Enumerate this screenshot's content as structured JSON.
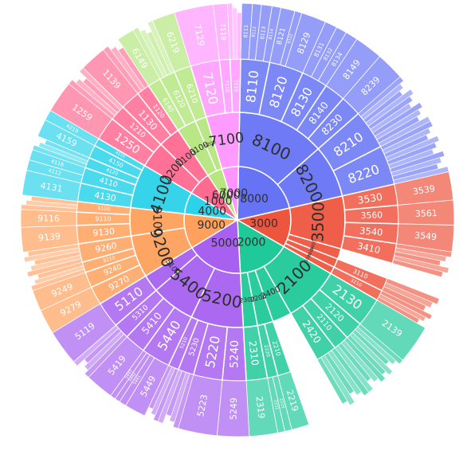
{
  "chart_data": {
    "type": "sunburst",
    "title": "",
    "ring_labels": "hierarchical category codes",
    "colors": {
      "8000": "#6673f5",
      "3000": "#ee553f",
      "2000": "#1fc999",
      "5000": "#a760f0",
      "9000": "#ffa05c",
      "4000": "#2ad2ea",
      "1000": "#ff6a91",
      "6000": "#b5e680",
      "7000": "#ff96ff"
    },
    "root": [
      {
        "code": "8000",
        "value": 160,
        "children": [
          {
            "code": "8100",
            "value": 100,
            "children": [
              {
                "code": "8110",
                "value": 22,
                "children": [
                  {
                    "code": "8111",
                    "value": 6
                  },
                  {
                    "code": "8112",
                    "value": 5
                  },
                  {
                    "code": "8113",
                    "value": 6
                  },
                  {
                    "code": "8114",
                    "value": 5
                  }
                ]
              },
              {
                "code": "8120",
                "value": 26,
                "children": [
                  {
                    "code": "8121",
                    "value": 8
                  },
                  {
                    "code": "8122",
                    "value": 4
                  },
                  {
                    "code": "8129",
                    "value": 14
                  }
                ]
              },
              {
                "code": "8130",
                "value": 20,
                "children": [
                  {
                    "code": "8131",
                    "value": 7
                  },
                  {
                    "code": "8132",
                    "value": 6
                  },
                  {
                    "code": "8134",
                    "value": 7
                  }
                ]
              },
              {
                "code": "8140",
                "value": 16,
                "children": [
                  {
                    "code": "8149",
                    "value": 16
                  }
                ]
              },
              {
                "code": "8230",
                "value": 16,
                "children": [
                  {
                    "code": "8239",
                    "value": 16
                  }
                ]
              }
            ]
          },
          {
            "code": "8200",
            "value": 60,
            "children": [
              {
                "code": "8210",
                "value": 30
              },
              {
                "code": "8220",
                "value": 30
              }
            ]
          }
        ]
      },
      {
        "code": "3000",
        "value": 90,
        "children": [
          {
            "code": "3500",
            "value": 60,
            "children": [
              {
                "code": "3530",
                "value": 16,
                "children": [
                  {
                    "code": "3539",
                    "value": 16
                  }
                ]
              },
              {
                "code": "3560",
                "value": 14,
                "children": [
                  {
                    "code": "3561",
                    "value": 14
                  }
                ]
              },
              {
                "code": "3540",
                "value": 15,
                "children": [
                  {
                    "code": "3549",
                    "value": 15
                  }
                ]
              },
              {
                "code": "3410",
                "value": 15
              }
            ]
          },
          {
            "code": "3400",
            "value": 12
          },
          {
            "code": "3100",
            "value": 10,
            "children": [
              {
                "code": "3110",
                "value": 10
              }
            ]
          },
          {
            "code": "3200",
            "value": 8,
            "children": [
              {
                "code": "3210",
                "value": 8
              }
            ]
          }
        ]
      },
      {
        "code": "2000",
        "value": 120,
        "children": [
          {
            "code": "2100",
            "value": 64,
            "children": [
              {
                "code": "2130",
                "value": 22,
                "children": [
                  {
                    "code": "2139",
                    "value": 22
                  }
                ]
              },
              {
                "code": "2120",
                "value": 14
              },
              {
                "code": "2110",
                "value": 12
              },
              {
                "code": "2420",
                "value": 16
              }
            ]
          },
          {
            "code": "2400",
            "value": 22
          },
          {
            "code": "2200",
            "value": 18,
            "children": [
              {
                "code": "2210",
                "value": 10,
                "children": [
                  {
                    "code": "2219",
                    "value": 10
                  }
                ]
              },
              {
                "code": "2220",
                "value": 8,
                "children": [
                  {
                    "code": "2229",
                    "value": 4
                  },
                  {
                    "code": "2231",
                    "value": 4
                  }
                ]
              }
            ]
          },
          {
            "code": "2300",
            "value": 16,
            "children": [
              {
                "code": "2310",
                "value": 16,
                "children": [
                  {
                    "code": "2319",
                    "value": 16
                  }
                ]
              }
            ]
          }
        ]
      },
      {
        "code": "5000",
        "value": 130,
        "children": [
          {
            "code": "5200",
            "value": 60,
            "children": [
              {
                "code": "5240",
                "value": 18,
                "children": [
                  {
                    "code": "5249",
                    "value": 18
                  }
                ]
              },
              {
                "code": "5220",
                "value": 22,
                "children": [
                  {
                    "code": "5223",
                    "value": 22
                  }
                ]
              },
              {
                "code": "5230",
                "value": 12
              },
              {
                "code": "5210",
                "value": 8
              }
            ]
          },
          {
            "code": "5400",
            "value": 50,
            "children": [
              {
                "code": "5440",
                "value": 22,
                "children": [
                  {
                    "code": "5449",
                    "value": 12
                  },
                  {
                    "code": "5441",
                    "value": 4
                  },
                  {
                    "code": "5442",
                    "value": 3
                  },
                  {
                    "code": "5443",
                    "value": 3
                  }
                ]
              },
              {
                "code": "5410",
                "value": 16,
                "children": [
                  {
                    "code": "5419",
                    "value": 16
                  }
                ]
              },
              {
                "code": "5310",
                "value": 12
              }
            ]
          },
          {
            "code": "5100",
            "value": 20,
            "children": [
              {
                "code": "5110",
                "value": 20,
                "children": [
                  {
                    "code": "5119",
                    "value": 20
                  }
                ]
              }
            ]
          }
        ]
      },
      {
        "code": "9000",
        "value": 80,
        "children": [
          {
            "code": "9200",
            "value": 48,
            "children": [
              {
                "code": "9270",
                "value": 14,
                "children": [
                  {
                    "code": "9279",
                    "value": 14
                  }
                ]
              },
              {
                "code": "9240",
                "value": 12,
                "children": [
                  {
                    "code": "9249",
                    "value": 12
                  }
                ]
              },
              {
                "code": "9210",
                "value": 8
              },
              {
                "code": "9260",
                "value": 14
              }
            ]
          },
          {
            "code": "9100",
            "value": 32,
            "children": [
              {
                "code": "9130",
                "value": 14,
                "children": [
                  {
                    "code": "9139",
                    "value": 14
                  }
                ]
              },
              {
                "code": "9110",
                "value": 10,
                "children": [
                  {
                    "code": "9116",
                    "value": 10
                  }
                ]
              },
              {
                "code": "9120",
                "value": 8
              }
            ]
          }
        ]
      },
      {
        "code": "4000",
        "value": 50,
        "children": [
          {
            "code": "4100",
            "value": 50,
            "children": [
              {
                "code": "4130",
                "value": 14,
                "children": [
                  {
                    "code": "4131",
                    "value": 14
                  }
                ]
              },
              {
                "code": "4110",
                "value": 12,
                "children": [
                  {
                    "code": "4112",
                    "value": 6
                  },
                  {
                    "code": "4116",
                    "value": 6
                  }
                ]
              },
              {
                "code": "4120",
                "value": 8
              },
              {
                "code": "4150",
                "value": 10,
                "children": [
                  {
                    "code": "4159",
                    "value": 10
                  }
                ]
              },
              {
                "code": "4210",
                "value": 6,
                "children": [
                  {
                    "code": "4219",
                    "value": 6
                  }
                ]
              }
            ]
          }
        ]
      },
      {
        "code": "1000",
        "value": 55,
        "children": [
          {
            "code": "1200",
            "value": 30,
            "children": [
              {
                "code": "1250",
                "value": 18,
                "children": [
                  {
                    "code": "1259",
                    "value": 18
                  }
                ]
              },
              {
                "code": "1210",
                "value": 12
              }
            ]
          },
          {
            "code": "1100",
            "value": 25,
            "children": [
              {
                "code": "1130",
                "value": 15,
                "children": [
                  {
                    "code": "1139",
                    "value": 15
                  }
                ]
              },
              {
                "code": "1120",
                "value": 10
              }
            ]
          }
        ]
      },
      {
        "code": "6000",
        "value": 35,
        "children": [
          {
            "code": "6100",
            "value": 22,
            "children": [
              {
                "code": "6140",
                "value": 10,
                "children": [
                  {
                    "code": "6149",
                    "value": 10
                  }
                ]
              },
              {
                "code": "6120",
                "value": 12
              }
            ]
          },
          {
            "code": "6200",
            "value": 13,
            "children": [
              {
                "code": "6210",
                "value": 13,
                "children": [
                  {
                    "code": "6219",
                    "value": 13
                  }
                ]
              }
            ]
          }
        ]
      },
      {
        "code": "7000",
        "value": 38,
        "children": [
          {
            "code": "7100",
            "value": 38,
            "children": [
              {
                "code": "7120",
                "value": 22,
                "children": [
                  {
                    "code": "7129",
                    "value": 22
                  }
                ]
              },
              {
                "code": "7110",
                "value": 8,
                "children": [
                  {
                    "code": "7119",
                    "value": 8
                  }
                ]
              },
              {
                "code": "7210",
                "value": 8
              }
            ]
          }
        ]
      }
    ]
  }
}
